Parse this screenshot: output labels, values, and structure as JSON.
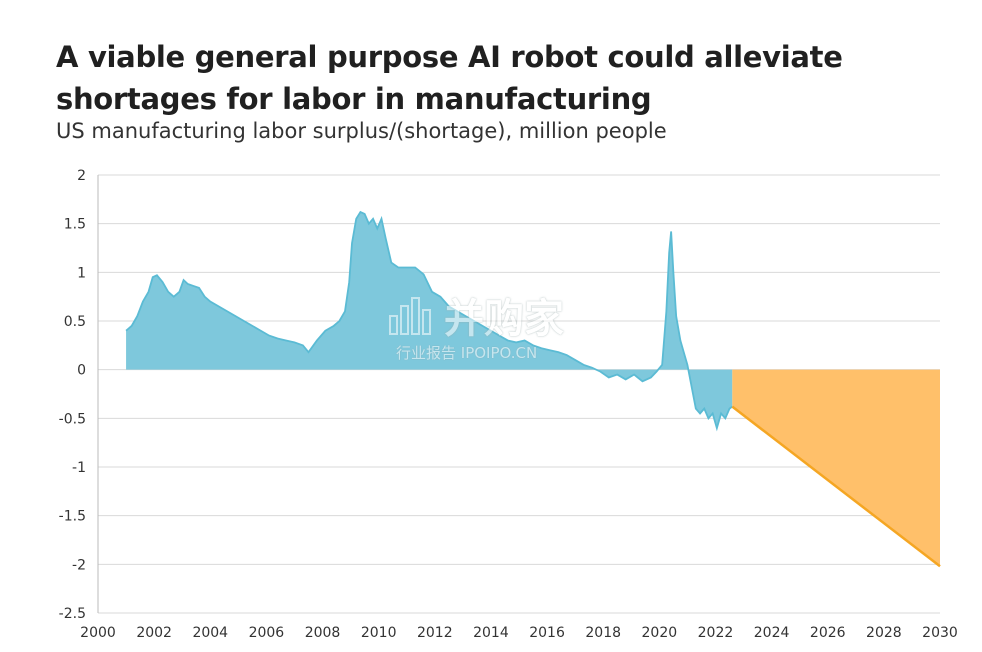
{
  "chart_data": {
    "type": "area",
    "title": "A viable general purpose AI robot could alleviate shortages for labor in manufacturing",
    "subtitle": "US manufacturing labor surplus/(shortage), million people",
    "xlim": [
      2000,
      2030
    ],
    "ylim": [
      -2.5,
      2
    ],
    "x_ticks": [
      "2000",
      "2002",
      "2004",
      "2006",
      "2008",
      "2010",
      "2012",
      "2014",
      "2016",
      "2018",
      "2020",
      "2022",
      "2024",
      "2026",
      "2028",
      "2030"
    ],
    "y_ticks": [
      "2",
      "1.5",
      "1",
      "0.5",
      "0",
      "-0.5",
      "-1",
      "-1.5",
      "-2",
      "-2.5"
    ],
    "grid": "horizontal",
    "series": [
      {
        "color": "#7ec8dc",
        "line_color": "#5bbbd4",
        "points": [
          [
            2001.0,
            0.4
          ],
          [
            2001.2,
            0.45
          ],
          [
            2001.4,
            0.55
          ],
          [
            2001.6,
            0.7
          ],
          [
            2001.8,
            0.8
          ],
          [
            2001.95,
            0.95
          ],
          [
            2002.1,
            0.97
          ],
          [
            2002.3,
            0.9
          ],
          [
            2002.5,
            0.8
          ],
          [
            2002.7,
            0.75
          ],
          [
            2002.9,
            0.8
          ],
          [
            2003.05,
            0.92
          ],
          [
            2003.2,
            0.88
          ],
          [
            2003.4,
            0.86
          ],
          [
            2003.6,
            0.84
          ],
          [
            2003.8,
            0.75
          ],
          [
            2004.0,
            0.7
          ],
          [
            2004.3,
            0.65
          ],
          [
            2004.6,
            0.6
          ],
          [
            2004.9,
            0.55
          ],
          [
            2005.2,
            0.5
          ],
          [
            2005.5,
            0.45
          ],
          [
            2005.8,
            0.4
          ],
          [
            2006.1,
            0.35
          ],
          [
            2006.4,
            0.32
          ],
          [
            2006.7,
            0.3
          ],
          [
            2007.0,
            0.28
          ],
          [
            2007.3,
            0.25
          ],
          [
            2007.5,
            0.18
          ],
          [
            2007.8,
            0.3
          ],
          [
            2008.1,
            0.4
          ],
          [
            2008.4,
            0.45
          ],
          [
            2008.6,
            0.5
          ],
          [
            2008.8,
            0.6
          ],
          [
            2008.95,
            0.9
          ],
          [
            2009.05,
            1.3
          ],
          [
            2009.2,
            1.55
          ],
          [
            2009.35,
            1.62
          ],
          [
            2009.5,
            1.6
          ],
          [
            2009.65,
            1.5
          ],
          [
            2009.8,
            1.55
          ],
          [
            2009.95,
            1.45
          ],
          [
            2010.1,
            1.55
          ],
          [
            2010.25,
            1.35
          ],
          [
            2010.45,
            1.1
          ],
          [
            2010.7,
            1.05
          ],
          [
            2011.0,
            1.05
          ],
          [
            2011.3,
            1.05
          ],
          [
            2011.6,
            0.98
          ],
          [
            2011.9,
            0.8
          ],
          [
            2012.2,
            0.75
          ],
          [
            2012.5,
            0.65
          ],
          [
            2012.8,
            0.6
          ],
          [
            2013.1,
            0.55
          ],
          [
            2013.4,
            0.5
          ],
          [
            2013.7,
            0.45
          ],
          [
            2014.0,
            0.4
          ],
          [
            2014.3,
            0.35
          ],
          [
            2014.6,
            0.3
          ],
          [
            2014.9,
            0.28
          ],
          [
            2015.2,
            0.3
          ],
          [
            2015.5,
            0.25
          ],
          [
            2015.8,
            0.22
          ],
          [
            2016.1,
            0.2
          ],
          [
            2016.4,
            0.18
          ],
          [
            2016.7,
            0.15
          ],
          [
            2017.0,
            0.1
          ],
          [
            2017.3,
            0.05
          ],
          [
            2017.6,
            0.02
          ],
          [
            2017.9,
            -0.02
          ],
          [
            2018.2,
            -0.08
          ],
          [
            2018.5,
            -0.05
          ],
          [
            2018.8,
            -0.1
          ],
          [
            2019.1,
            -0.05
          ],
          [
            2019.4,
            -0.12
          ],
          [
            2019.7,
            -0.08
          ],
          [
            2019.9,
            -0.02
          ],
          [
            2020.1,
            0.05
          ],
          [
            2020.25,
            0.6
          ],
          [
            2020.35,
            1.2
          ],
          [
            2020.42,
            1.42
          ],
          [
            2020.5,
            1.0
          ],
          [
            2020.6,
            0.55
          ],
          [
            2020.75,
            0.3
          ],
          [
            2020.9,
            0.15
          ],
          [
            2021.0,
            0.05
          ],
          [
            2021.1,
            -0.1
          ],
          [
            2021.2,
            -0.25
          ],
          [
            2021.3,
            -0.4
          ],
          [
            2021.45,
            -0.45
          ],
          [
            2021.6,
            -0.4
          ],
          [
            2021.75,
            -0.5
          ],
          [
            2021.9,
            -0.45
          ],
          [
            2022.05,
            -0.6
          ],
          [
            2022.2,
            -0.45
          ],
          [
            2022.35,
            -0.5
          ],
          [
            2022.5,
            -0.4
          ],
          [
            2022.6,
            -0.38
          ]
        ]
      },
      {
        "color": "#ffc06a",
        "line_color": "#f5a623",
        "points": [
          [
            2022.6,
            -0.38
          ],
          [
            2030.0,
            -2.02
          ]
        ]
      }
    ]
  },
  "watermark": {
    "main": "并购家",
    "sub": "行业报告 IPOIPO.CN"
  }
}
